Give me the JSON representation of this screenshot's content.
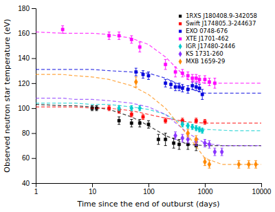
{
  "chart_data": {
    "type": "scatter",
    "xlabel": "Time since the end of outburst (days)",
    "ylabel": "Observed neutron star temperature (eV)",
    "log": "x",
    "grid": false,
    "legend": "upper right",
    "xlim": [
      1,
      10000
    ],
    "ylim": [
      40,
      180
    ],
    "xticks": [
      1,
      10,
      100,
      1000,
      10000
    ],
    "yticks": [
      40,
      60,
      80,
      100,
      120,
      140,
      160,
      180
    ],
    "series": [
      {
        "name": "1RXS J180408.9-342058",
        "color": "#000000",
        "marker": "square",
        "line_style": "dashed",
        "x": [
          10,
          12,
          30,
          50,
          70,
          100,
          150,
          200,
          280,
          350,
          500,
          700
        ],
        "values": [
          100,
          100,
          90,
          88,
          88,
          87,
          75,
          75,
          72,
          71,
          71,
          70
        ],
        "errors": [
          2,
          2,
          3,
          3,
          3,
          3,
          4,
          5,
          4,
          4,
          4,
          4
        ],
        "curve_x": [
          1,
          3,
          5,
          10,
          20,
          50,
          100,
          200,
          500,
          1000,
          3000,
          10000
        ],
        "curve_y": [
          103,
          102,
          102,
          101,
          99,
          93,
          86,
          78,
          71,
          70,
          70,
          70
        ]
      },
      {
        "name": "Swift J174805.3-244637",
        "color": "#ff0000",
        "marker": "square",
        "line_style": "dashed",
        "x": [
          20,
          30,
          50,
          80,
          200,
          400,
          700,
          1000
        ],
        "values": [
          100,
          98,
          95,
          93,
          90,
          90,
          90,
          89
        ],
        "errors": [
          2,
          2,
          2,
          2,
          2,
          2,
          2,
          2
        ],
        "curve_x": [
          1,
          3,
          5,
          10,
          20,
          50,
          100,
          200,
          500,
          1000,
          3000,
          10000
        ],
        "curve_y": [
          101,
          101,
          101,
          100,
          100,
          98,
          95,
          92,
          89,
          88,
          88,
          88
        ]
      },
      {
        "name": "EXO 0748-676",
        "color": "#0000dd",
        "marker": "square",
        "line_style": "dashed",
        "x": [
          60,
          80,
          100,
          200,
          250,
          300,
          350,
          400,
          500,
          600,
          700,
          800,
          900
        ],
        "values": [
          129,
          127,
          126,
          120,
          119,
          117,
          117,
          116,
          115,
          118,
          117,
          116,
          111
        ],
        "errors": [
          3,
          3,
          3,
          3,
          3,
          3,
          3,
          3,
          3,
          3,
          3,
          3,
          4
        ],
        "curve_x": [
          1,
          3,
          5,
          10,
          20,
          50,
          100,
          200,
          500,
          1000,
          3000,
          10000
        ],
        "curve_y": [
          131,
          131,
          131,
          131,
          130,
          129,
          128,
          124,
          116,
          112,
          112,
          112
        ]
      },
      {
        "name": "XTE J1701-462",
        "color": "#ff00ff",
        "marker": "square",
        "line_style": "dashed",
        "x": [
          3,
          20,
          30,
          50,
          70,
          200,
          300,
          400,
          500,
          600,
          700,
          800,
          1000,
          1200,
          1500
        ],
        "values": [
          163,
          158,
          158,
          155,
          149,
          135,
          129,
          128,
          126,
          124,
          124,
          123,
          123,
          121,
          120
        ],
        "errors": [
          3,
          3,
          3,
          3,
          4,
          4,
          4,
          3,
          3,
          3,
          3,
          3,
          3,
          3,
          4
        ],
        "curve_x": [
          1,
          3,
          5,
          10,
          20,
          50,
          100,
          200,
          500,
          1000,
          3000,
          10000
        ],
        "curve_y": [
          161,
          160,
          160,
          160,
          159,
          156,
          151,
          141,
          123,
          120,
          120,
          120
        ]
      },
      {
        "name": "IGR J17480-2446",
        "color": "#00cccc",
        "marker": "diamond",
        "line_style": "dashed",
        "x": [
          30,
          50,
          70,
          400,
          500,
          600,
          700,
          800,
          900
        ],
        "values": [
          100,
          100,
          100,
          87,
          86,
          85,
          84,
          83,
          82
        ],
        "errors": [
          2,
          2,
          2,
          2,
          2,
          2,
          2,
          2,
          2
        ],
        "curve_x": [
          1,
          3,
          5,
          10,
          20,
          50,
          100,
          200,
          500,
          1000,
          3000,
          10000
        ],
        "curve_y": [
          104,
          104,
          104,
          103,
          103,
          101,
          99,
          95,
          85,
          83,
          82,
          82
        ]
      },
      {
        "name": "KS 1731-260",
        "color": "#8833ff",
        "marker": "diamond",
        "line_style": "dashed",
        "x": [
          300,
          400,
          500,
          700,
          1000,
          1200,
          1500,
          2000
        ],
        "values": [
          78,
          76,
          75,
          73,
          72,
          71,
          65,
          65
        ],
        "errors": [
          3,
          3,
          3,
          3,
          3,
          3,
          3,
          3
        ],
        "curve_x": [
          1,
          3,
          5,
          10,
          20,
          50,
          100,
          200,
          500,
          1000,
          2000,
          5000,
          10000
        ],
        "curve_y": [
          108,
          108,
          107,
          107,
          106,
          104,
          101,
          95,
          80,
          72,
          70,
          70,
          70
        ]
      },
      {
        "name": "MXB 1659-29",
        "color": "#ff8800",
        "marker": "diamond",
        "line_style": "dashed",
        "x": [
          60,
          500,
          700,
          1000,
          1200,
          4000,
          6000,
          8000
        ],
        "values": [
          121,
          80,
          75,
          57,
          55,
          55,
          55,
          55
        ],
        "errors": [
          4,
          3,
          3,
          3,
          3,
          3,
          3,
          3
        ],
        "curve_x": [
          1,
          3,
          5,
          10,
          20,
          50,
          100,
          200,
          500,
          1000,
          2000,
          5000,
          10000
        ],
        "curve_y": [
          127,
          127,
          126,
          125,
          123,
          118,
          111,
          100,
          78,
          60,
          55,
          55,
          55
        ]
      }
    ]
  }
}
